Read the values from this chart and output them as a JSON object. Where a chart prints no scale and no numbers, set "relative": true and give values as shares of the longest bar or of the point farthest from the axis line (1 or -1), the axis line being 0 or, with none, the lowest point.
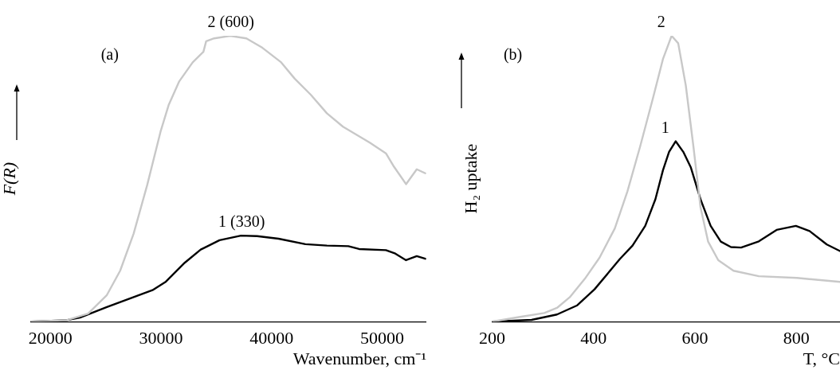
{
  "chart_data": [
    {
      "type": "line",
      "relative": true,
      "xlabel": "Wavenumber, cm⁻¹",
      "ylabel": "F(R)",
      "xlim": [
        18200,
        54000
      ],
      "xticks": [
        20000,
        30000,
        40000,
        50000
      ],
      "grid": false,
      "legend": false,
      "marker": "none",
      "line_style": "solid",
      "annotations": [
        "(a)",
        {
          "text": "2 (600)",
          "x": 36260,
          "y": 1.0
        },
        {
          "text": "1 (330)",
          "x": 37230,
          "y": 0.301
        }
      ],
      "series": [
        {
          "color": "#c8c8c8",
          "x": [
            18200,
            21460,
            23400,
            25100,
            26300,
            27520,
            28740,
            29950,
            30680,
            31650,
            32860,
            33830,
            34080,
            34800,
            36260,
            37720,
            39170,
            40870,
            42090,
            43540,
            45000,
            46460,
            47670,
            48880,
            50340,
            51070,
            52160,
            53130,
            53900
          ],
          "values": [
            0,
            0.005,
            0.028,
            0.093,
            0.178,
            0.308,
            0.477,
            0.664,
            0.757,
            0.841,
            0.907,
            0.944,
            0.981,
            0.991,
            1.0,
            0.991,
            0.958,
            0.907,
            0.85,
            0.794,
            0.729,
            0.682,
            0.654,
            0.626,
            0.589,
            0.542,
            0.481,
            0.533,
            0.519
          ]
        },
        {
          "color": "#000000",
          "x": [
            18200,
            21460,
            22670,
            25100,
            27040,
            29220,
            30440,
            32140,
            33590,
            35290,
            37230,
            38690,
            40630,
            43060,
            45000,
            46940,
            47910,
            50340,
            51190,
            52160,
            53130,
            53900
          ],
          "values": [
            0,
            0.005,
            0.014,
            0.051,
            0.079,
            0.11,
            0.14,
            0.206,
            0.252,
            0.285,
            0.301,
            0.299,
            0.29,
            0.271,
            0.266,
            0.264,
            0.254,
            0.25,
            0.238,
            0.215,
            0.229,
            0.22
          ]
        }
      ]
    },
    {
      "type": "line",
      "relative": true,
      "xlabel": "T, °C",
      "ylabel": "H₂ uptake",
      "xlim": [
        200,
        886
      ],
      "xticks": [
        200,
        400,
        600,
        800
      ],
      "grid": false,
      "legend": false,
      "marker": "none",
      "line_style": "solid",
      "annotations": [
        "(b)",
        {
          "text": "2",
          "x": 554,
          "y": 1.0
        },
        {
          "text": "1",
          "x": 562,
          "y": 0.631
        }
      ],
      "series": [
        {
          "color": "#c8c8c8",
          "x": [
            200,
            253,
            303,
            328,
            353,
            383,
            412,
            442,
            467,
            492,
            517,
            537,
            554,
            567,
            582,
            597,
            611,
            626,
            646,
            676,
            726,
            801,
            886
          ],
          "values": [
            0,
            0.016,
            0.03,
            0.048,
            0.085,
            0.15,
            0.224,
            0.326,
            0.456,
            0.613,
            0.78,
            0.919,
            1.0,
            0.974,
            0.826,
            0.613,
            0.4,
            0.28,
            0.215,
            0.178,
            0.159,
            0.153,
            0.139
          ]
        },
        {
          "color": "#000000",
          "x": [
            200,
            278,
            328,
            368,
            402,
            452,
            477,
            502,
            522,
            537,
            549,
            562,
            577,
            592,
            611,
            631,
            651,
            671,
            691,
            726,
            761,
            799,
            826,
            860,
            886
          ],
          "values": [
            0,
            0.006,
            0.025,
            0.057,
            0.113,
            0.219,
            0.266,
            0.335,
            0.428,
            0.53,
            0.594,
            0.631,
            0.594,
            0.539,
            0.428,
            0.335,
            0.28,
            0.261,
            0.259,
            0.281,
            0.321,
            0.335,
            0.317,
            0.27,
            0.247
          ]
        }
      ]
    }
  ]
}
